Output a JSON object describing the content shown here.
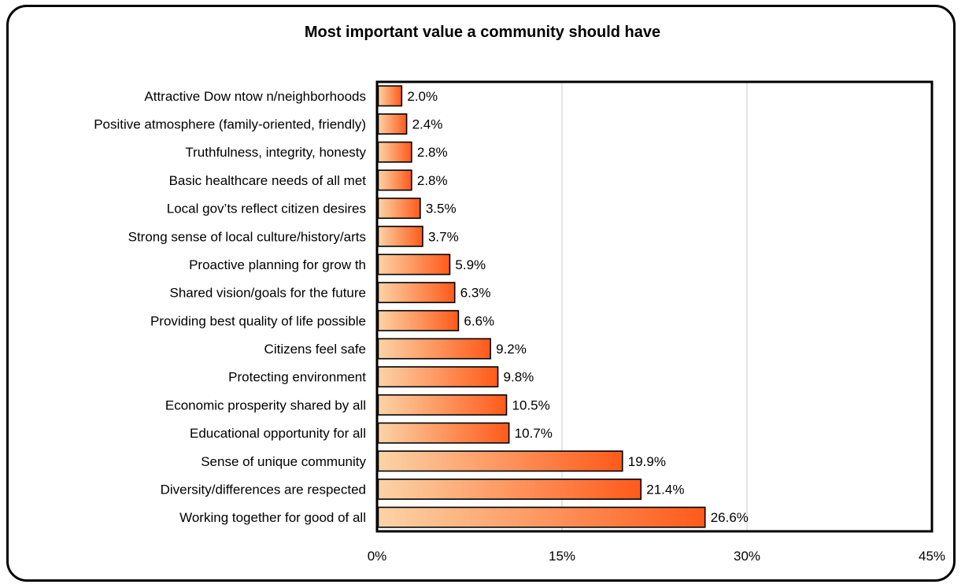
{
  "chart_data": {
    "type": "bar",
    "orientation": "horizontal",
    "title": "Most important value a community should have",
    "xlabel": "",
    "ylabel": "",
    "xlim": [
      0,
      45
    ],
    "x_ticks": [
      "0%",
      "15%",
      "30%",
      "45%"
    ],
    "grid": true,
    "legend": "none",
    "categories": [
      "Attractive Dow ntow n/neighborhoods",
      "Positive atmosphere (family-oriented, friendly)",
      "Truthfulness, integrity, honesty",
      "Basic healthcare needs of all met",
      "Local gov’ts reflect citizen desires",
      "Strong sense of local culture/history/arts",
      "Proactive planning for grow th",
      "Shared vision/goals for the future",
      "Providing best quality of life possible",
      "Citizens feel safe",
      "Protecting environment",
      "Economic prosperity shared by all",
      "Educational opportunity for all",
      "Sense of unique community",
      "Diversity/differences are respected",
      "Working together for good of all"
    ],
    "values": [
      2.0,
      2.4,
      2.8,
      2.8,
      3.5,
      3.7,
      5.9,
      6.3,
      6.6,
      9.2,
      9.8,
      10.5,
      10.7,
      19.9,
      21.4,
      26.6
    ],
    "value_labels": [
      "2.0%",
      "2.4%",
      "2.8%",
      "2.8%",
      "3.5%",
      "3.7%",
      "5.9%",
      "6.3%",
      "6.6%",
      "9.2%",
      "9.8%",
      "10.5%",
      "10.7%",
      "19.9%",
      "21.4%",
      "26.6%"
    ],
    "colors": {
      "bar_light": "#fcd3a6",
      "bar_dark": "#ff5a1a",
      "grid": "#c8c8c8",
      "frame": "#000000"
    }
  }
}
